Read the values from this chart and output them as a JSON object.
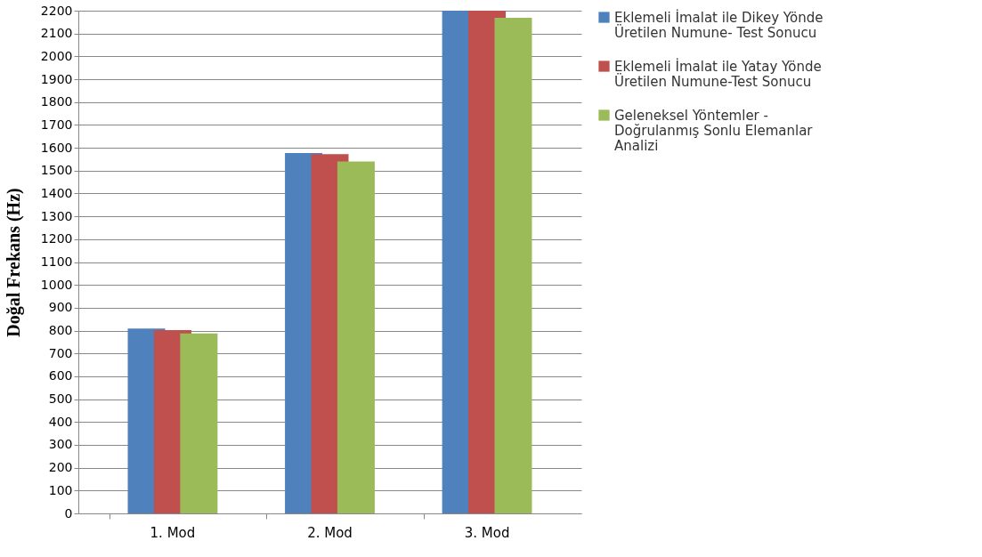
{
  "chart_data": {
    "type": "bar",
    "ylabel": "Doğal Frekans (Hz)",
    "categories": [
      "1. Mod",
      "2. Mod",
      "3. Mod"
    ],
    "series": [
      {
        "name": "Eklemeli İmalat ile Dikey Yönde Üretilen Numune- Test Sonucu",
        "color": "#4f81bd",
        "values": [
          809,
          1577,
          2200
        ]
      },
      {
        "name": "Eklemeli İmalat ile Yatay Yönde Üretilen Numune-Test Sonucu",
        "color": "#c0504d",
        "values": [
          802,
          1572,
          2200
        ]
      },
      {
        "name": "Geleneksel Yöntemler - Doğrulanmış Sonlu Elemanlar Analizi",
        "color": "#9bbb59",
        "values": [
          788,
          1540,
          2169
        ]
      }
    ],
    "ylim": [
      0,
      2200
    ],
    "yticks": [
      0,
      100,
      200,
      300,
      400,
      500,
      600,
      700,
      800,
      900,
      1000,
      1100,
      1200,
      1300,
      1400,
      1500,
      1600,
      1700,
      1800,
      1900,
      2000,
      2100,
      2200
    ],
    "grid": "y",
    "legend": "right"
  }
}
